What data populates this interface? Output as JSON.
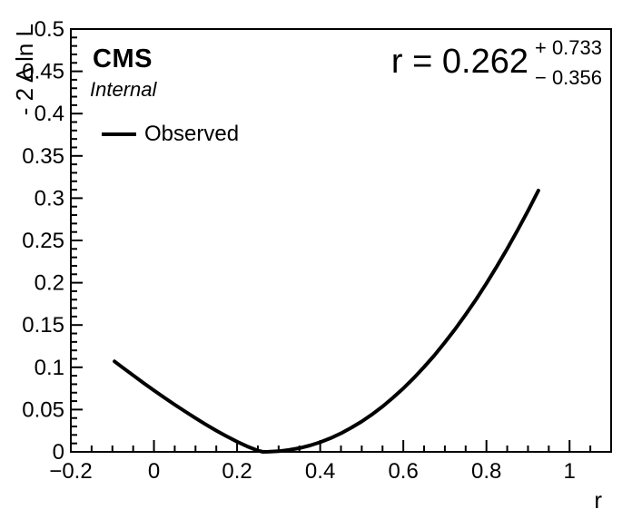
{
  "header": {
    "experiment": "CMS",
    "label": "Internal"
  },
  "best_fit_text": {
    "main": "r = 0.262",
    "err_up": "+ 0.733",
    "err_down": "− 0.356"
  },
  "legend": {
    "position": "top-left",
    "entries": [
      {
        "label": "Observed",
        "style": "line",
        "color": "#000000"
      }
    ]
  },
  "colors": {
    "foreground": "#000000",
    "background": "#ffffff"
  },
  "chart_data": {
    "type": "line",
    "title": "",
    "xlabel": "r",
    "ylabel": "- 2 Δ ln L",
    "xlim": [
      -0.2,
      1.1
    ],
    "ylim": [
      0,
      0.5
    ],
    "grid": false,
    "x_ticks": [
      -0.2,
      0,
      0.2,
      0.4,
      0.6,
      0.8,
      1
    ],
    "x_tick_labels": [
      "−0.2",
      "0",
      "0.2",
      "0.4",
      "0.6",
      "0.8",
      "1"
    ],
    "x_minor_step": 0.05,
    "y_ticks": [
      0,
      0.05,
      0.1,
      0.15,
      0.2,
      0.25,
      0.3,
      0.35,
      0.4,
      0.45,
      0.5
    ],
    "y_tick_labels": [
      "0",
      "0.05",
      "0.1",
      "0.15",
      "0.2",
      "0.25",
      "0.3",
      "0.35",
      "0.4",
      "0.45",
      "0.5"
    ],
    "y_minor_step": 0.01,
    "legend_position": "top-left",
    "best_fit": {
      "parameter": "r",
      "value": 0.262,
      "err_up": 0.733,
      "err_down": 0.356
    },
    "series": [
      {
        "name": "Observed",
        "color": "#000000",
        "line_width": 4,
        "x": [
          -0.095,
          -0.075,
          -0.05,
          -0.025,
          0,
          0.025,
          0.05,
          0.075,
          0.1,
          0.125,
          0.15,
          0.175,
          0.2,
          0.225,
          0.25,
          0.262,
          0.275,
          0.3,
          0.325,
          0.35,
          0.375,
          0.4,
          0.425,
          0.45,
          0.475,
          0.5,
          0.525,
          0.55,
          0.575,
          0.6,
          0.625,
          0.65,
          0.675,
          0.7,
          0.725,
          0.75,
          0.775,
          0.8,
          0.825,
          0.85,
          0.875,
          0.9,
          0.925
        ],
        "y": [
          0.107,
          0.0996,
          0.0904,
          0.0814,
          0.0727,
          0.0641,
          0.0558,
          0.0477,
          0.0399,
          0.0323,
          0.0251,
          0.0183,
          0.012,
          0.0063,
          0.0015,
          0,
          0.0001,
          0.0008,
          0.0022,
          0.0044,
          0.0075,
          0.0114,
          0.0162,
          0.0219,
          0.0285,
          0.0359,
          0.0443,
          0.0536,
          0.0639,
          0.0751,
          0.0872,
          0.1003,
          0.1143,
          0.1294,
          0.1454,
          0.1623,
          0.1803,
          0.1993,
          0.2192,
          0.2402,
          0.2621,
          0.2851,
          0.309
        ]
      }
    ]
  }
}
